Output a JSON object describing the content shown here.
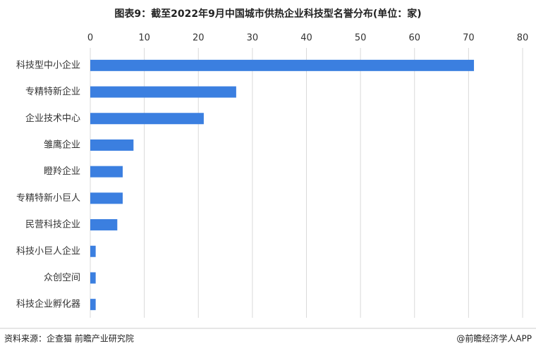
{
  "chart_data": {
    "type": "bar",
    "orientation": "horizontal",
    "title": "图表9：截至2022年9月中国城市供热企业科技型名誉分布(单位：家)",
    "categories": [
      "科技型中小企业",
      "专精特新企业",
      "企业技术中心",
      "雏鹰企业",
      "瞪羚企业",
      "专精特新小巨人",
      "民营科技企业",
      "科技小巨人企业",
      "众创空间",
      "科技企业孵化器"
    ],
    "values": [
      71,
      27,
      21,
      8,
      6,
      6,
      5,
      1,
      1,
      1
    ],
    "color": "#3b7fe0",
    "xlim": [
      0,
      80
    ],
    "xticks": [
      0,
      10,
      20,
      30,
      40,
      50,
      60,
      70,
      80
    ],
    "grid": true
  },
  "footer": {
    "source": "资料来源：企查猫 前瞻产业研究院",
    "credit": "@前瞻经济学人APP"
  }
}
